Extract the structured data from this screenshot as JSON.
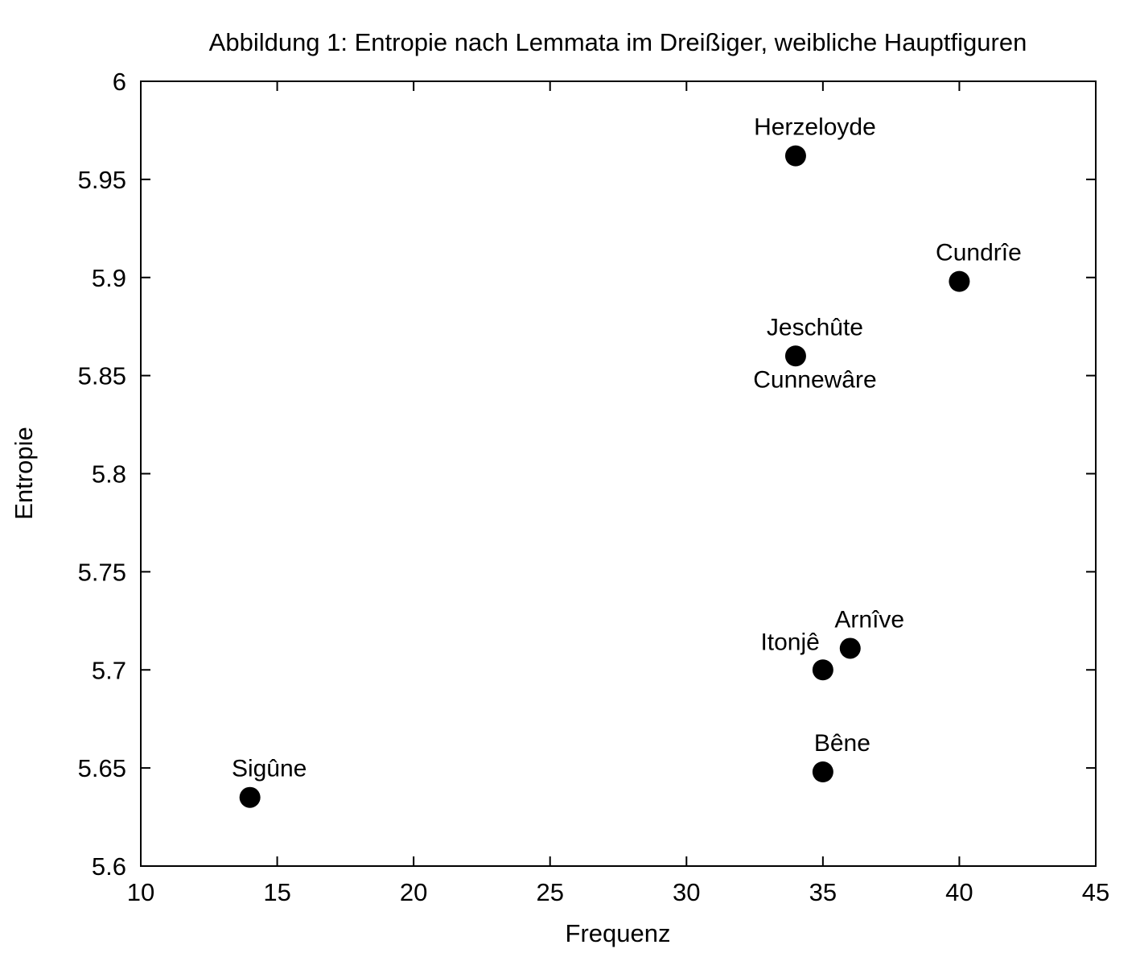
{
  "chart_data": {
    "type": "scatter",
    "title": "Abbildung 1: Entropie nach Lemmata im Dreißiger, weibliche Hauptfiguren",
    "xlabel": "Frequenz",
    "ylabel": "Entropie",
    "xlim": [
      10,
      45
    ],
    "ylim": [
      5.6,
      6.0
    ],
    "xticks": [
      10,
      15,
      20,
      25,
      30,
      35,
      40,
      45
    ],
    "xtick_labels": [
      "10",
      "15",
      "20",
      "25",
      "30",
      "35",
      "40",
      "45"
    ],
    "yticks": [
      5.6,
      5.65,
      5.7,
      5.75,
      5.8,
      5.85,
      5.9,
      5.95,
      6.0
    ],
    "ytick_labels": [
      "5.6",
      "5.65",
      "5.7",
      "5.75",
      "5.8",
      "5.85",
      "5.9",
      "5.95",
      "6"
    ],
    "grid": false,
    "legend": "none",
    "marker_color": "#000000",
    "points": [
      {
        "label": "Herzeloyde",
        "x": 34,
        "y": 5.962,
        "label_pos": "above"
      },
      {
        "label": "Cundrîe",
        "x": 40,
        "y": 5.898,
        "label_pos": "above"
      },
      {
        "label": "Jeschûte",
        "x": 34,
        "y": 5.86,
        "label_pos": "above"
      },
      {
        "label": "Cunnewâre",
        "x": 34,
        "y": 5.86,
        "label_pos": "below"
      },
      {
        "label": "Arnîve",
        "x": 36,
        "y": 5.711,
        "label_pos": "above"
      },
      {
        "label": "Itonjê",
        "x": 35,
        "y": 5.7,
        "label_pos": "above-left"
      },
      {
        "label": "Bêne",
        "x": 35,
        "y": 5.648,
        "label_pos": "above"
      },
      {
        "label": "Sigûne",
        "x": 14,
        "y": 5.635,
        "label_pos": "above"
      }
    ]
  }
}
